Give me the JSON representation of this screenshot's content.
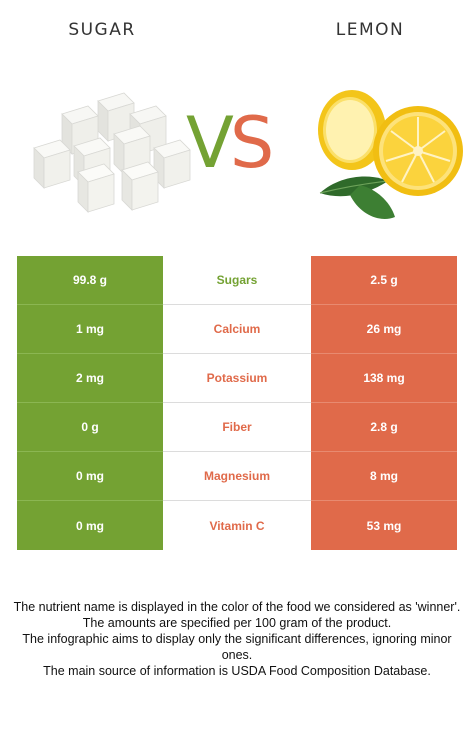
{
  "header": {
    "left_title": "SUGAR",
    "right_title": "LEMON",
    "vs_v": "V",
    "vs_s": "S"
  },
  "colors": {
    "left_accent": "#74a233",
    "right_accent": "#e06a4a"
  },
  "images": {
    "left": "sugar-cubes-image",
    "right": "lemon-image"
  },
  "rows": [
    {
      "left": "99.8 g",
      "nutrient": "Sugars",
      "right": "2.5 g",
      "winner": "left"
    },
    {
      "left": "1 mg",
      "nutrient": "Calcium",
      "right": "26 mg",
      "winner": "right"
    },
    {
      "left": "2 mg",
      "nutrient": "Potassium",
      "right": "138 mg",
      "winner": "right"
    },
    {
      "left": "0 g",
      "nutrient": "Fiber",
      "right": "2.8 g",
      "winner": "right"
    },
    {
      "left": "0 mg",
      "nutrient": "Magnesium",
      "right": "8 mg",
      "winner": "right"
    },
    {
      "left": "0 mg",
      "nutrient": "Vitamin C",
      "right": "53 mg",
      "winner": "right"
    }
  ],
  "footer": {
    "line1": "The nutrient name is displayed in the color of the food we considered as 'winner'.",
    "line2": "The amounts are specified per 100 gram of the product.",
    "line3": "The infographic aims to display only the significant differences, ignoring minor ones.",
    "line4": "The main source of information is USDA Food Composition Database."
  }
}
